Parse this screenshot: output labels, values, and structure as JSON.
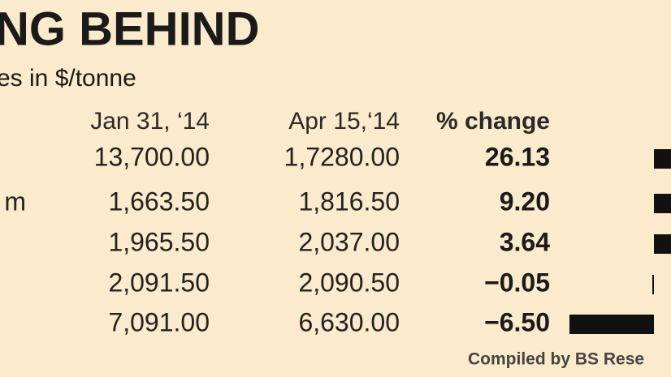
{
  "header": {
    "title": "NG BEHIND",
    "subtitle": "es in $/tonne"
  },
  "table": {
    "columns": [
      "Jan 31, ‘14",
      "Apr 15,‘14",
      "% change"
    ],
    "rows": [
      [
        "",
        "13,700.00",
        "1,7280.00"
      ],
      [
        "m",
        "1,663.50",
        "1,816.50"
      ],
      [
        "",
        "1,965.50",
        "2,037.00"
      ],
      [
        "",
        "2,091.50",
        "2,090.50"
      ],
      [
        "",
        "7,091.00",
        "6,630.00"
      ]
    ]
  },
  "changes": {
    "values": [
      26.13,
      9.2,
      3.64,
      -0.05,
      -6.5
    ],
    "value_labels": [
      "26.13",
      "9.20",
      "3.64",
      "−0.05",
      "−6.50"
    ]
  },
  "footer": {
    "source": "Compiled by BS Rese"
  }
}
